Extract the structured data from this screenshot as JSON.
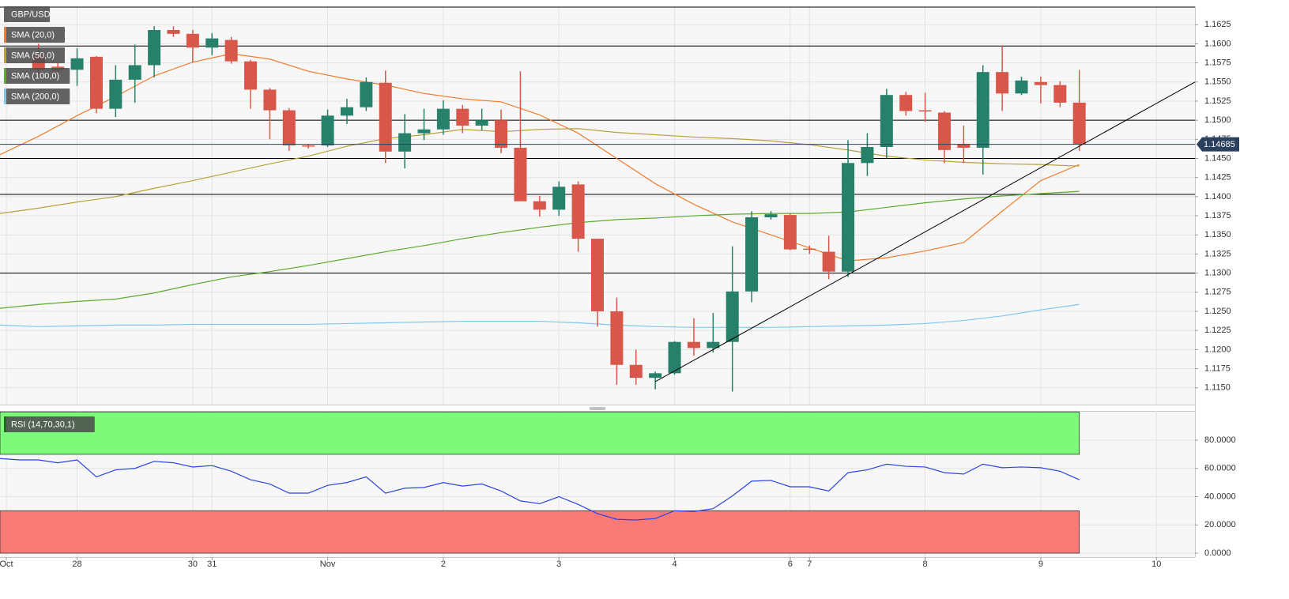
{
  "chart_data": [
    {
      "type": "candlestick",
      "xlim": [
        0,
        62
      ],
      "ylim": [
        1.1128,
        1.1649
      ],
      "grid": true,
      "up_color": "#26806a",
      "down_color": "#d9574a",
      "yticks": [
        {
          "value": 1.115,
          "label": "1.1150"
        },
        1.1175,
        {
          "value": 1.12,
          "label": "1.1200"
        },
        1.1225,
        {
          "value": 1.125,
          "label": "1.1250"
        },
        1.1275,
        {
          "value": 1.13,
          "label": "1.1300"
        },
        1.1325,
        {
          "value": 1.135,
          "label": "1.1350"
        },
        1.1375,
        {
          "value": 1.14,
          "label": "1.1400"
        },
        1.1425,
        {
          "value": 1.145,
          "label": "1.1450"
        },
        1.1475,
        {
          "value": 1.15,
          "label": "1.1500"
        },
        1.1525,
        {
          "value": 1.155,
          "label": "1.1550"
        },
        1.1575,
        {
          "value": 1.16,
          "label": "1.1600"
        },
        1.1625
      ],
      "series": [
        {
          "name": "GBP/USD",
          "x": [
            2,
            3,
            4,
            5,
            6,
            7,
            8,
            9,
            10,
            11,
            12,
            13,
            14,
            15,
            16,
            17,
            18,
            19,
            20,
            21,
            22,
            23,
            24,
            25,
            26,
            27,
            28,
            29,
            30,
            31,
            32,
            33,
            34,
            35,
            36,
            37,
            38,
            39,
            40,
            41,
            42,
            43,
            44,
            45,
            46,
            47,
            48,
            49,
            50,
            51,
            52,
            53,
            54,
            55,
            56
          ],
          "open": [
            1.1585,
            1.157,
            1.1566,
            1.1583,
            1.1515,
            1.1553,
            1.1572,
            1.1618,
            1.1613,
            1.1595,
            1.1605,
            1.1577,
            1.154,
            1.1513,
            1.1467,
            1.1467,
            1.1506,
            1.1517,
            1.1549,
            1.1459,
            1.1483,
            1.1488,
            1.1515,
            1.1493,
            1.15,
            1.1464,
            1.1394,
            1.1383,
            1.1416,
            1.1345,
            1.125,
            1.118,
            1.1163,
            1.1169,
            1.121,
            1.1202,
            1.121,
            1.1276,
            1.1373,
            1.1376,
            1.1332,
            1.1328,
            1.1302,
            1.1444,
            1.1465,
            1.1533,
            1.1513,
            1.151,
            1.1469,
            1.1464,
            1.1563,
            1.1535,
            1.155,
            1.1546,
            1.1523
          ],
          "high": [
            1.16,
            1.1575,
            1.1594,
            1.1584,
            1.1572,
            1.1599,
            1.1623,
            1.1623,
            1.1618,
            1.1614,
            1.1609,
            1.1579,
            1.1542,
            1.1516,
            1.1468,
            1.1514,
            1.1528,
            1.1556,
            1.1565,
            1.1508,
            1.1515,
            1.1526,
            1.152,
            1.1515,
            1.1514,
            1.1564,
            1.1401,
            1.142,
            1.142,
            1.1345,
            1.1268,
            1.12,
            1.1171,
            1.1211,
            1.1241,
            1.1248,
            1.1335,
            1.1381,
            1.1381,
            1.1378,
            1.1336,
            1.1349,
            1.1474,
            1.1483,
            1.1541,
            1.1537,
            1.1536,
            1.1512,
            1.1493,
            1.1572,
            1.1598,
            1.1557,
            1.1557,
            1.1551,
            1.1566
          ],
          "low": [
            1.156,
            1.1562,
            1.1545,
            1.1509,
            1.1504,
            1.1523,
            1.1556,
            1.1609,
            1.1576,
            1.1585,
            1.1574,
            1.1515,
            1.1475,
            1.146,
            1.1463,
            1.1465,
            1.1495,
            1.1512,
            1.1444,
            1.1437,
            1.1474,
            1.1481,
            1.1483,
            1.1487,
            1.1457,
            1.1394,
            1.1374,
            1.1375,
            1.1328,
            1.123,
            1.1154,
            1.1154,
            1.1148,
            1.1167,
            1.1192,
            1.1196,
            1.1145,
            1.1262,
            1.137,
            1.133,
            1.1325,
            1.1292,
            1.1295,
            1.1427,
            1.145,
            1.1506,
            1.1498,
            1.1444,
            1.1444,
            1.1429,
            1.1512,
            1.1533,
            1.1522,
            1.1517,
            1.146
          ],
          "close": [
            1.1566,
            1.1565,
            1.1581,
            1.1515,
            1.1553,
            1.1572,
            1.1618,
            1.1613,
            1.1595,
            1.1607,
            1.1577,
            1.154,
            1.1513,
            1.1467,
            1.1466,
            1.1506,
            1.1517,
            1.155,
            1.1459,
            1.1483,
            1.1488,
            1.1515,
            1.1493,
            1.15,
            1.1464,
            1.1394,
            1.1383,
            1.1413,
            1.1345,
            1.125,
            1.118,
            1.1163,
            1.1169,
            1.121,
            1.1202,
            1.121,
            1.1276,
            1.1373,
            1.1377,
            1.1331,
            1.1331,
            1.1302,
            1.1444,
            1.1465,
            1.1533,
            1.1512,
            1.1512,
            1.1461,
            1.1464,
            1.1563,
            1.1535,
            1.1552,
            1.1546,
            1.1523,
            1.14685
          ]
        },
        {
          "name": "SMA (20,0)",
          "color": "#f07d2e",
          "x": [
            0,
            2,
            4,
            6,
            8,
            10,
            12,
            14,
            16,
            18,
            20,
            22,
            24,
            26,
            28,
            30,
            32,
            34,
            36,
            38,
            40,
            42,
            44,
            46,
            48,
            50,
            52,
            54,
            56
          ],
          "values": [
            1.1455,
            1.1479,
            1.1506,
            1.1531,
            1.1558,
            1.1576,
            1.1587,
            1.158,
            1.1564,
            1.1554,
            1.1546,
            1.1535,
            1.1528,
            1.1524,
            1.1507,
            1.1483,
            1.145,
            1.1417,
            1.139,
            1.1367,
            1.135,
            1.1333,
            1.1316,
            1.132,
            1.1329,
            1.134,
            1.1381,
            1.1421,
            1.1442
          ]
        },
        {
          "name": "SMA (50,0)",
          "color": "#b8a23a",
          "x": [
            0,
            2,
            4,
            6,
            8,
            10,
            12,
            14,
            16,
            18,
            20,
            22,
            24,
            26,
            28,
            30,
            32,
            34,
            36,
            38,
            40,
            42,
            44,
            46,
            48,
            50,
            52,
            54,
            56
          ],
          "values": [
            1.1378,
            1.1385,
            1.1393,
            1.14,
            1.1411,
            1.1421,
            1.1432,
            1.1443,
            1.1453,
            1.1466,
            1.1476,
            1.1481,
            1.1488,
            1.1485,
            1.1488,
            1.1489,
            1.1484,
            1.1481,
            1.1478,
            1.1476,
            1.1473,
            1.1468,
            1.1461,
            1.1453,
            1.1448,
            1.1445,
            1.1443,
            1.1442,
            1.144
          ]
        },
        {
          "name": "SMA (100,0)",
          "color": "#5aab2e",
          "x": [
            0,
            2,
            4,
            6,
            8,
            10,
            12,
            14,
            16,
            18,
            20,
            22,
            24,
            26,
            28,
            30,
            32,
            34,
            36,
            38,
            40,
            42,
            44,
            46,
            48,
            50,
            52,
            54,
            56
          ],
          "values": [
            1.1254,
            1.1259,
            1.1263,
            1.1266,
            1.1274,
            1.1285,
            1.1295,
            1.1302,
            1.131,
            1.1319,
            1.1328,
            1.1336,
            1.1345,
            1.1353,
            1.136,
            1.1366,
            1.137,
            1.1372,
            1.1375,
            1.1377,
            1.1378,
            1.1378,
            1.138,
            1.1386,
            1.1392,
            1.1397,
            1.1401,
            1.1404,
            1.1407
          ]
        },
        {
          "name": "SMA (200,0)",
          "color": "#7ec8f0",
          "x": [
            0,
            2,
            4,
            6,
            8,
            10,
            12,
            14,
            16,
            18,
            20,
            22,
            24,
            26,
            28,
            30,
            32,
            34,
            36,
            38,
            40,
            42,
            44,
            46,
            48,
            50,
            52,
            54,
            56
          ],
          "values": [
            1.1232,
            1.123,
            1.1231,
            1.1232,
            1.1232,
            1.1233,
            1.1233,
            1.1233,
            1.1233,
            1.1234,
            1.1235,
            1.1236,
            1.1237,
            1.1237,
            1.1237,
            1.1235,
            1.1232,
            1.123,
            1.1229,
            1.1229,
            1.1229,
            1.123,
            1.1231,
            1.1232,
            1.1234,
            1.1238,
            1.1244,
            1.1252,
            1.1259
          ]
        }
      ],
      "hlines": [
        1.1648,
        1.1597,
        1.15,
        1.145,
        1.1403,
        1.13
      ],
      "hline_color": "#000000",
      "trendline": {
        "x": [
          34,
          62
        ],
        "values": [
          1.1158,
          1.155
        ]
      },
      "last_price": 1.14685,
      "last_price_color": "#2b3f5e"
    },
    {
      "type": "line",
      "xlim": [
        0,
        62
      ],
      "ylim": [
        -2.8,
        100.7
      ],
      "grid": true,
      "yticks": [
        {
          "value": 0,
          "label": "0.0000"
        },
        {
          "value": 20,
          "label": "20.0000"
        },
        {
          "value": 40,
          "label": "40.0000"
        },
        {
          "value": 60,
          "label": "60.0000"
        },
        {
          "value": 80,
          "label": "80.0000"
        }
      ],
      "xticks": [
        {
          "value": 0.33,
          "label": "Oct"
        },
        {
          "value": 4,
          "label": "28"
        },
        {
          "value": 10,
          "label": "30"
        },
        {
          "value": 11,
          "label": "31"
        },
        {
          "value": 17,
          "label": "Nov"
        },
        {
          "value": 23,
          "label": "2"
        },
        {
          "value": 29,
          "label": "3"
        },
        {
          "value": 35,
          "label": "4"
        },
        {
          "value": 41,
          "label": "6"
        },
        {
          "value": 42,
          "label": "7"
        },
        {
          "value": 48,
          "label": "8"
        },
        {
          "value": 54,
          "label": "9"
        },
        {
          "value": 60,
          "label": "10"
        }
      ],
      "zones": [
        {
          "from": 70,
          "to": 100,
          "color": "#7dfa7a"
        },
        {
          "from": 0,
          "to": 30,
          "color": "#fa7a78"
        }
      ],
      "series": [
        {
          "name": "RSI (14,70,30,1)",
          "color": "#2a44e0",
          "x": [
            0,
            1,
            2,
            3,
            4,
            5,
            6,
            7,
            8,
            9,
            10,
            11,
            12,
            13,
            14,
            15,
            16,
            17,
            18,
            19,
            20,
            21,
            22,
            23,
            24,
            25,
            26,
            27,
            28,
            29,
            30,
            31,
            32,
            33,
            34,
            35,
            36,
            37,
            38,
            39,
            40,
            41,
            42,
            43,
            44,
            45,
            46,
            47,
            48,
            49,
            50,
            51,
            52,
            53,
            54,
            55,
            56
          ],
          "values": [
            67,
            66,
            66,
            64,
            66,
            54,
            59,
            60,
            65,
            64,
            61,
            62,
            58,
            52,
            49,
            42.5,
            42.5,
            48,
            50,
            54,
            42.5,
            46,
            46.5,
            50,
            47.5,
            49,
            44,
            37,
            35,
            40,
            34.5,
            28,
            24,
            23.5,
            24.5,
            30,
            29.5,
            31.5,
            40.5,
            51,
            51.5,
            47,
            47,
            44,
            57,
            59,
            63,
            61.5,
            61,
            57,
            56,
            63,
            60.5,
            61,
            60.5,
            58,
            52
          ]
        }
      ]
    }
  ]
}
